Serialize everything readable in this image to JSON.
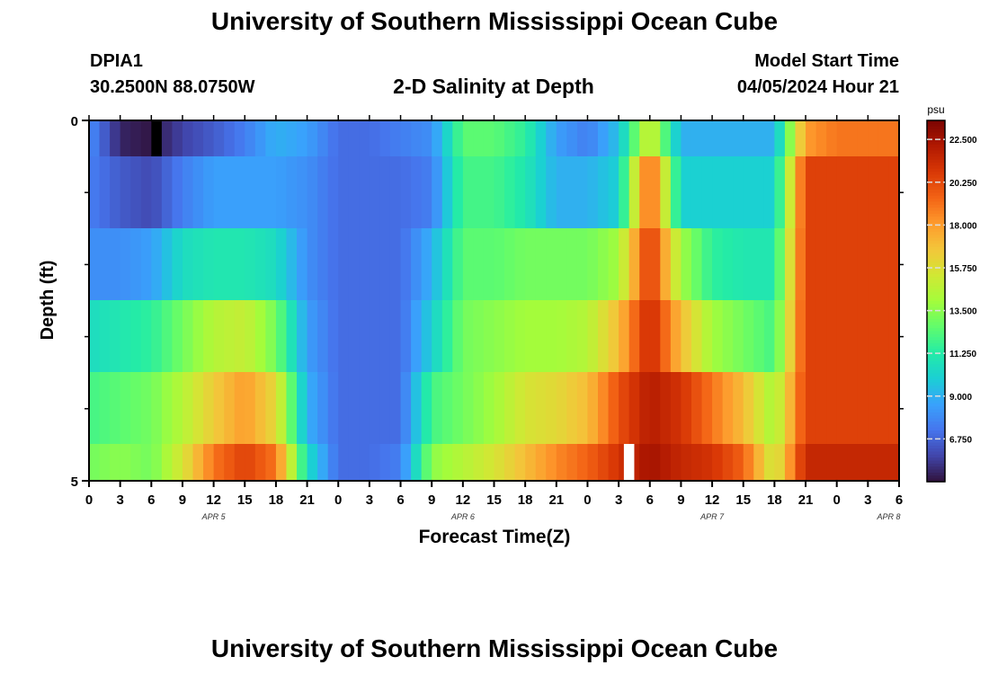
{
  "header": {
    "title": "University of Southern Mississippi Ocean Cube",
    "station_id": "DPIA1",
    "coordinates": "30.2500N  88.0750W",
    "plot_title": "2-D Salinity at Depth",
    "model_start_label": "Model Start Time",
    "model_start_value": "04/05/2024 Hour 21"
  },
  "footer": {
    "title": "University of Southern Mississippi Ocean Cube"
  },
  "chart_data": {
    "type": "heatmap",
    "title": "2-D Salinity at Depth",
    "xlabel": "Forecast Time(Z)",
    "ylabel": "Depth (ft)",
    "y_ticks": [
      "0",
      "5"
    ],
    "ylim": [
      0,
      5
    ],
    "x_tick_labels": [
      "0",
      "3",
      "6",
      "9",
      "12",
      "15",
      "18",
      "21",
      "0",
      "3",
      "6",
      "9",
      "12",
      "15",
      "18",
      "21",
      "0",
      "3",
      "6",
      "9",
      "12",
      "15",
      "18",
      "21",
      "0",
      "3",
      "6"
    ],
    "day_labels": [
      "APR 5",
      "APR 6",
      "APR 7",
      "APR 8"
    ],
    "colorbar": {
      "unit": "psu",
      "min": 4.5,
      "max": 23.5,
      "ticks": [
        "22.500",
        "20.250",
        "18.000",
        "15.750",
        "13.500",
        "11.250",
        "9.000",
        "6.750"
      ],
      "colors": [
        "#30123b",
        "#4145ab",
        "#4675ed",
        "#39a2fc",
        "#1bcfd4",
        "#24eca6",
        "#61fc6c",
        "#a4fc3b",
        "#d1e834",
        "#f3c63a",
        "#fe9b2d",
        "#f36315",
        "#d93806",
        "#b11901",
        "#7a0402"
      ]
    },
    "x_hours_start": 0,
    "x_hours_end": 78,
    "hours": [
      0,
      3,
      6,
      9,
      12,
      15,
      18,
      21,
      24,
      27,
      30,
      33,
      36,
      39,
      42,
      45,
      48,
      51,
      54,
      57,
      60,
      63,
      66,
      69,
      72,
      75,
      78
    ],
    "layers": [
      [
        8.0,
        5.0,
        4.6,
        5.8,
        6.5,
        7.5,
        9.0,
        8.5,
        7.0,
        7.0,
        7.5,
        8.0,
        12.5,
        12.5,
        11.5,
        8.5,
        7.5,
        9.5,
        15.5,
        9.0,
        9.0,
        9.0,
        9.0,
        18.0,
        19.0,
        19.0,
        19.0
      ],
      [
        7.5,
        6.5,
        6.0,
        7.5,
        8.5,
        8.5,
        8.5,
        8.0,
        7.0,
        7.0,
        7.0,
        7.5,
        12.0,
        12.0,
        11.0,
        9.0,
        9.0,
        10.0,
        20.0,
        10.0,
        10.0,
        10.0,
        10.0,
        20.5,
        20.5,
        20.5,
        20.5
      ],
      [
        8.0,
        8.0,
        8.5,
        10.5,
        11.0,
        11.0,
        10.5,
        8.0,
        7.0,
        7.0,
        7.0,
        9.0,
        12.5,
        12.5,
        13.0,
        13.0,
        13.0,
        14.0,
        21.0,
        14.0,
        11.5,
        11.0,
        11.0,
        20.5,
        20.5,
        20.5,
        20.5
      ],
      [
        10.5,
        11.0,
        11.5,
        13.0,
        14.5,
        15.0,
        13.0,
        8.5,
        7.0,
        7.0,
        7.0,
        10.0,
        13.0,
        13.5,
        14.0,
        14.0,
        14.5,
        17.0,
        21.5,
        17.0,
        14.0,
        13.0,
        12.0,
        20.5,
        20.5,
        20.5,
        20.5
      ],
      [
        12.0,
        12.5,
        13.0,
        14.5,
        16.5,
        18.0,
        16.0,
        9.0,
        7.0,
        7.0,
        7.0,
        12.0,
        13.0,
        14.0,
        15.5,
        16.0,
        17.0,
        20.0,
        22.0,
        21.0,
        19.0,
        17.0,
        14.0,
        20.5,
        20.5,
        20.5,
        20.5
      ],
      [
        13.0,
        13.5,
        13.0,
        15.5,
        19.0,
        20.5,
        19.0,
        10.5,
        7.0,
        7.0,
        7.5,
        13.5,
        14.5,
        15.5,
        17.0,
        18.5,
        19.5,
        21.0,
        22.5,
        21.5,
        21.0,
        19.5,
        15.0,
        21.5,
        21.5,
        21.5,
        21.5
      ]
    ],
    "special_cells": [
      {
        "layer": 0,
        "hour": 6.5,
        "color": "#000000"
      },
      {
        "layer": 5,
        "hour": 52.0,
        "color": "#ffffff"
      }
    ]
  }
}
